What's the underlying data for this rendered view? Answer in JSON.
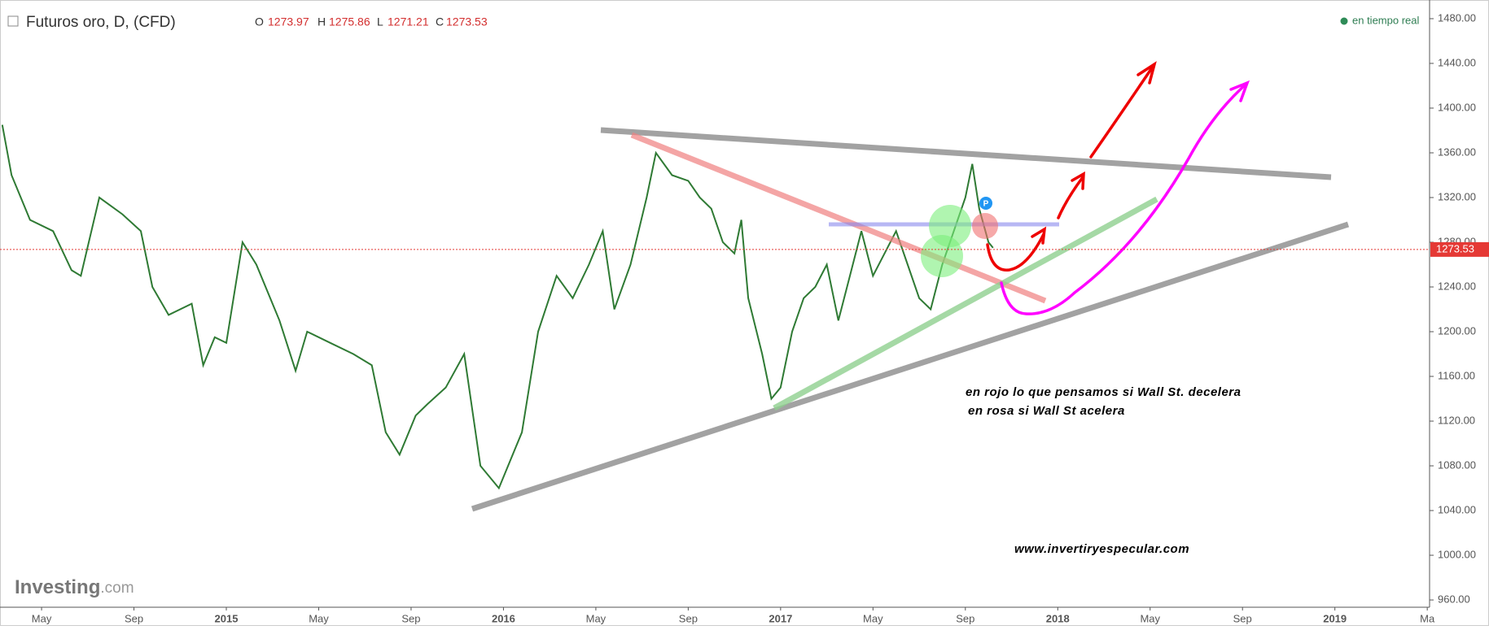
{
  "chart_data": {
    "type": "line",
    "title": "Futuros oro, D, (CFD)",
    "ohlc": [
      {
        "label": "O",
        "value": 1273.97
      },
      {
        "label": "H",
        "value": 1275.86
      },
      {
        "label": "L",
        "value": 1271.21
      },
      {
        "label": "C",
        "value": 1273.53
      }
    ],
    "status": "en tiempo real",
    "last_price": 1273.53,
    "annotations": [
      "en rojo lo que pensamos si Wall St. decelera",
      "en rosa si Wall St acelera",
      "www.invertiryespecular.com"
    ],
    "logo": [
      "Investing",
      ".com"
    ],
    "color": "#2f7a34",
    "x": [
      2.3,
      2.7,
      3.5,
      4.5,
      5.3,
      5.7,
      6.5,
      7.5,
      8.3,
      8.8,
      9.5,
      10.5,
      11.0,
      11.5,
      12.0,
      12.7,
      13.3,
      14.3,
      15.0,
      15.5,
      16.5,
      17.5,
      18.3,
      18.9,
      19.5,
      20.2,
      20.7,
      21.5,
      22.3,
      23.0,
      23.8,
      24.3,
      24.8,
      25.5,
      26.3,
      27.0,
      27.7,
      28.3,
      28.8,
      29.5,
      30.2,
      30.6,
      31.3,
      32.0,
      32.5,
      33.0,
      33.5,
      34.0,
      34.3,
      34.6,
      35.2,
      35.6,
      36.0,
      36.5,
      37.0,
      37.5,
      38.0,
      38.5,
      39.0,
      39.5,
      40.0,
      40.5,
      41.0,
      41.5,
      42.0,
      42.5,
      43.0,
      43.5,
      44.0,
      44.3,
      44.6,
      45.0,
      45.2
    ],
    "values": [
      1385,
      1340,
      1300,
      1290,
      1255,
      1250,
      1320,
      1305,
      1290,
      1240,
      1215,
      1225,
      1170,
      1195,
      1190,
      1280,
      1260,
      1210,
      1165,
      1200,
      1190,
      1180,
      1170,
      1110,
      1090,
      1125,
      1135,
      1150,
      1180,
      1080,
      1060,
      1085,
      1110,
      1200,
      1250,
      1230,
      1260,
      1290,
      1220,
      1260,
      1320,
      1360,
      1340,
      1335,
      1320,
      1310,
      1280,
      1270,
      1300,
      1230,
      1180,
      1140,
      1150,
      1200,
      1230,
      1240,
      1260,
      1210,
      1250,
      1290,
      1250,
      1270,
      1290,
      1260,
      1230,
      1220,
      1260,
      1290,
      1320,
      1350,
      1310,
      1280,
      1275
    ],
    "xlim": [
      2.2,
      64.1
    ],
    "xticks": [
      {
        "value": 4,
        "label": "May"
      },
      {
        "value": 8,
        "label": "Sep"
      },
      {
        "value": 12,
        "label": "2015"
      },
      {
        "value": 16,
        "label": "May"
      },
      {
        "value": 20,
        "label": "Sep"
      },
      {
        "value": 24,
        "label": "2016"
      },
      {
        "value": 28,
        "label": "May"
      },
      {
        "value": 32,
        "label": "Sep"
      },
      {
        "value": 36,
        "label": "2017"
      },
      {
        "value": 40,
        "label": "May"
      },
      {
        "value": 44,
        "label": "Sep"
      },
      {
        "value": 48,
        "label": "2018"
      },
      {
        "value": 52,
        "label": "May"
      },
      {
        "value": 56,
        "label": "Sep"
      },
      {
        "value": 60,
        "label": "2019"
      },
      {
        "value": 64,
        "label": "Ma"
      }
    ],
    "ylim": [
      953.5,
      1496.7
    ],
    "yticks": [
      {
        "value": 960,
        "label": "960.00"
      },
      {
        "value": 1000,
        "label": "1000.00"
      },
      {
        "value": 1040,
        "label": "1040.00"
      },
      {
        "value": 1080,
        "label": "1080.00"
      },
      {
        "value": 1120,
        "label": "1120.00"
      },
      {
        "value": 1160,
        "label": "1160.00"
      },
      {
        "value": 1200,
        "label": "1200.00"
      },
      {
        "value": 1240,
        "label": "1240.00"
      },
      {
        "value": 1280,
        "label": "1280.00"
      },
      {
        "value": 1320,
        "label": "1320.00"
      },
      {
        "value": 1360,
        "label": "1360.00"
      },
      {
        "value": 1400,
        "label": "1400.00"
      },
      {
        "value": 1440,
        "label": "1440.00"
      },
      {
        "value": 1480,
        "label": "1480.00"
      }
    ],
    "grid": false
  }
}
